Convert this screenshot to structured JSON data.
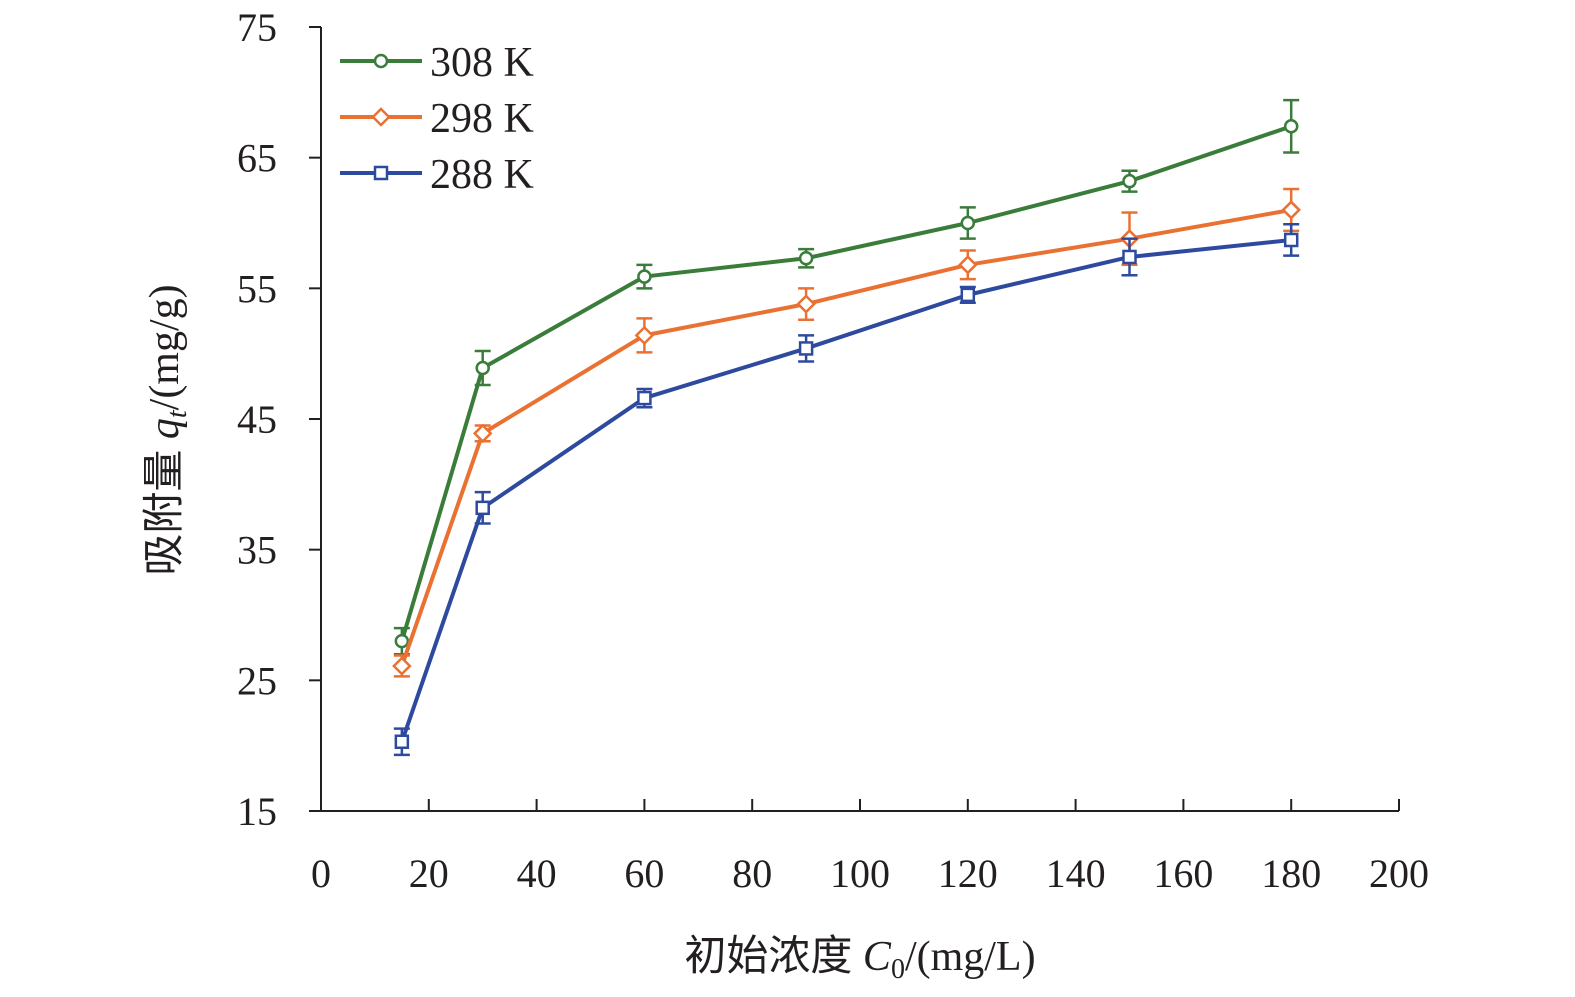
{
  "chart_data": {
    "type": "line",
    "x": [
      15,
      30,
      60,
      90,
      120,
      150,
      180
    ],
    "xlim": [
      0,
      200
    ],
    "ylim": [
      15,
      75
    ],
    "xticks": [
      "0",
      "20",
      "40",
      "60",
      "80",
      "100",
      "120",
      "140",
      "160",
      "180",
      "200"
    ],
    "yticks": [
      "15",
      "25",
      "35",
      "45",
      "55",
      "65",
      "75"
    ],
    "xlabel": {
      "prefix": "初始浓度 ",
      "var": "C",
      "sub": "0",
      "unit": "/(mg/L)"
    },
    "ylabel": {
      "prefix": "吸附量 ",
      "var": "q",
      "sub": "t",
      "unit": "/(mg/g)"
    },
    "grid": false,
    "legend_position": "top-left",
    "series": [
      {
        "name": "308 K",
        "color": "#3a7d3a",
        "marker": "circle",
        "values": [
          28.0,
          48.9,
          55.9,
          57.3,
          60.0,
          63.2,
          67.4
        ],
        "errors": [
          1.0,
          1.3,
          0.9,
          0.7,
          1.2,
          0.8,
          2.0
        ]
      },
      {
        "name": "298 K",
        "color": "#e97132",
        "marker": "diamond",
        "values": [
          26.1,
          43.9,
          51.4,
          53.8,
          56.8,
          58.8,
          61.0
        ],
        "errors": [
          0.8,
          0.6,
          1.3,
          1.2,
          1.1,
          2.0,
          1.6
        ]
      },
      {
        "name": "288 K",
        "color": "#2e4a9e",
        "marker": "square",
        "values": [
          20.3,
          38.2,
          46.6,
          50.4,
          54.5,
          57.4,
          58.7
        ],
        "errors": [
          1.0,
          1.2,
          0.7,
          1.0,
          0.6,
          1.4,
          1.2
        ]
      }
    ]
  }
}
